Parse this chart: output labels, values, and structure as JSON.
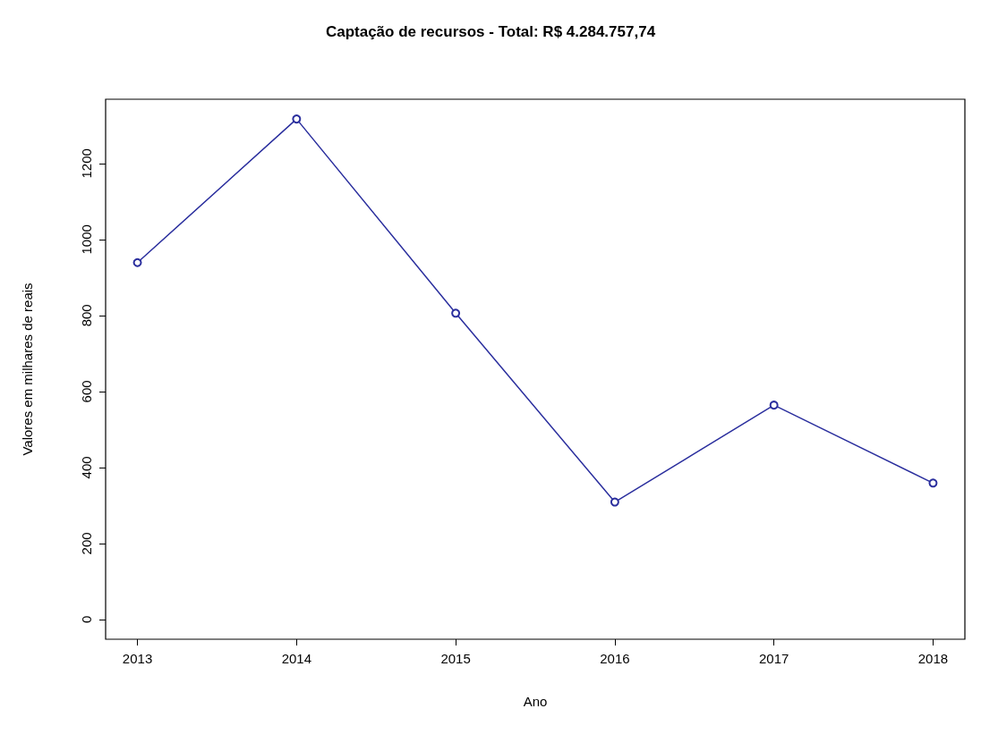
{
  "chart_data": {
    "type": "line",
    "title": "Captação de recursos - Total: R$ 4.284.757,74",
    "xlabel": "Ano",
    "ylabel": "Valores em milhares de reais",
    "x": [
      2013,
      2014,
      2015,
      2016,
      2017,
      2018
    ],
    "series": [
      {
        "color": "#2b2f9e",
        "values": [
          939,
          1317,
          806,
          309,
          564,
          359
        ]
      }
    ],
    "xlim": [
      2012.8,
      2018.2
    ],
    "xticks": [
      2013,
      2014,
      2015,
      2016,
      2017,
      2018
    ],
    "ylim": [
      -52,
      1369
    ],
    "yticks": [
      0,
      200,
      400,
      600,
      800,
      1000,
      1200
    ],
    "grid": false,
    "marker": "circle",
    "line_style": "solid"
  }
}
